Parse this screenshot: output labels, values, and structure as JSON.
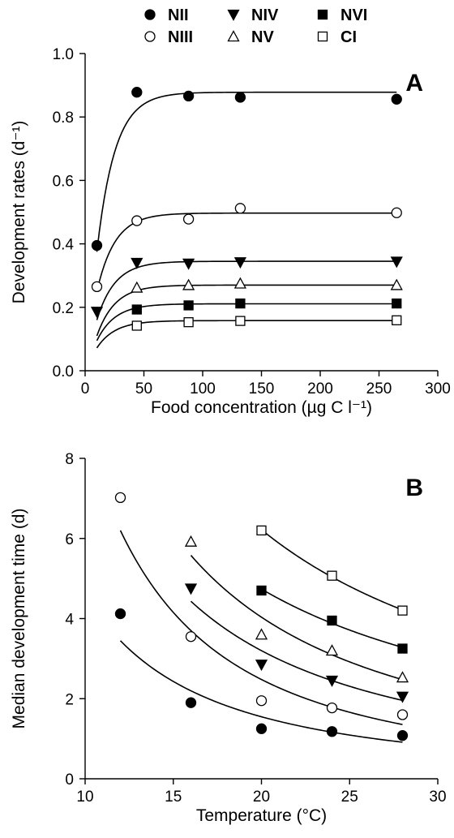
{
  "legend": {
    "entries": [
      {
        "label": "NII",
        "marker": "circle",
        "filled": true
      },
      {
        "label": "NIII",
        "marker": "circle",
        "filled": false
      },
      {
        "label": "NIV",
        "marker": "triangle-down",
        "filled": true
      },
      {
        "label": "NV",
        "marker": "triangle-up",
        "filled": false
      },
      {
        "label": "NVI",
        "marker": "square",
        "filled": true
      },
      {
        "label": "CI",
        "marker": "square",
        "filled": false
      }
    ]
  },
  "chart_data": [
    {
      "type": "scatter",
      "panel": "A",
      "xlabel": "Food concentration (µg C l⁻¹)",
      "ylabel": "Development rates (d⁻¹)",
      "xlim": [
        0,
        300
      ],
      "ylim": [
        0,
        1.0
      ],
      "xticks": [
        0,
        50,
        100,
        150,
        200,
        250,
        300
      ],
      "yticks": [
        0.0,
        0.2,
        0.4,
        0.6,
        0.8,
        1.0
      ],
      "xtick_labels": [
        "0",
        "50",
        "100",
        "150",
        "200",
        "250",
        "300"
      ],
      "ytick_labels": [
        "0.0",
        "0.2",
        "0.4",
        "0.6",
        "0.8",
        "1.0"
      ],
      "grid": false,
      "fit_curves": true,
      "series": [
        {
          "name": "NII",
          "x": [
            10,
            44,
            88,
            132,
            265
          ],
          "y": [
            0.395,
            0.878,
            0.866,
            0.862,
            0.856
          ]
        },
        {
          "name": "NIII",
          "x": [
            10,
            44,
            88,
            132,
            265
          ],
          "y": [
            0.265,
            0.473,
            0.478,
            0.512,
            0.498
          ]
        },
        {
          "name": "NIV",
          "x": [
            10,
            44,
            88,
            132,
            265
          ],
          "y": [
            0.186,
            0.34,
            0.338,
            0.342,
            0.344
          ]
        },
        {
          "name": "NV",
          "x": [
            44,
            88,
            132,
            265
          ],
          "y": [
            0.262,
            0.27,
            0.275,
            0.27
          ]
        },
        {
          "name": "NVI",
          "x": [
            44,
            88,
            132,
            265
          ],
          "y": [
            0.193,
            0.206,
            0.212,
            0.212
          ]
        },
        {
          "name": "CI",
          "x": [
            44,
            88,
            132,
            265
          ],
          "y": [
            0.142,
            0.153,
            0.157,
            0.159
          ]
        }
      ]
    },
    {
      "type": "scatter",
      "panel": "B",
      "xlabel": "Temperature (°C)",
      "ylabel": "Median development time (d)",
      "xlim": [
        10,
        30
      ],
      "ylim": [
        0,
        8
      ],
      "xticks": [
        10,
        15,
        20,
        25,
        30
      ],
      "yticks": [
        0,
        2,
        4,
        6,
        8
      ],
      "xtick_labels": [
        "10",
        "15",
        "20",
        "25",
        "30"
      ],
      "ytick_labels": [
        "0",
        "2",
        "4",
        "6",
        "8"
      ],
      "grid": false,
      "fit_curves": true,
      "series": [
        {
          "name": "NII",
          "x": [
            12,
            16,
            20,
            24,
            28
          ],
          "y": [
            4.12,
            1.9,
            1.25,
            1.18,
            1.08
          ]
        },
        {
          "name": "NIII",
          "x": [
            12,
            16,
            20,
            24,
            28
          ],
          "y": [
            7.02,
            3.55,
            1.95,
            1.77,
            1.6
          ]
        },
        {
          "name": "NIV",
          "x": [
            16,
            20,
            24,
            28
          ],
          "y": [
            4.75,
            2.85,
            2.45,
            2.05
          ]
        },
        {
          "name": "NV",
          "x": [
            16,
            20,
            24,
            28
          ],
          "y": [
            5.92,
            3.6,
            3.2,
            2.53
          ]
        },
        {
          "name": "NVI",
          "x": [
            20,
            24,
            28
          ],
          "y": [
            4.7,
            3.95,
            3.25
          ]
        },
        {
          "name": "CI",
          "x": [
            20,
            24,
            28
          ],
          "y": [
            6.2,
            5.07,
            4.2
          ]
        }
      ]
    }
  ]
}
